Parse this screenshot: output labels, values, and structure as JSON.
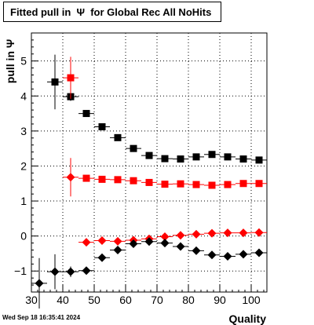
{
  "title": "Fitted pull in  Ψ  for Global Rec All NoHits",
  "footer": "Wed Sep 18 16:35:41 2024",
  "chart_data": {
    "type": "scatter",
    "title": "Fitted pull in  Ψ  for Global Rec All NoHits",
    "xlabel": "Quality",
    "ylabel": "pull in  Ψ",
    "xlim": [
      30,
      105
    ],
    "ylim": [
      -1.6,
      5.8
    ],
    "xticks": [
      30,
      40,
      50,
      60,
      70,
      80,
      90,
      100
    ],
    "yticks": [
      -1,
      0,
      1,
      2,
      3,
      4,
      5
    ],
    "grid": true,
    "series": [
      {
        "marker": "square",
        "color": "#000000",
        "points": [
          {
            "x": 37.5,
            "y": 4.4,
            "yerr": 0.78
          },
          {
            "x": 42.5,
            "y": 3.98,
            "yerr": 0.12
          },
          {
            "x": 47.5,
            "y": 3.5,
            "yerr": 0.04
          },
          {
            "x": 52.5,
            "y": 3.12,
            "yerr": 0.04
          },
          {
            "x": 57.5,
            "y": 2.81,
            "yerr": 0.04
          },
          {
            "x": 62.5,
            "y": 2.5,
            "yerr": 0.04
          },
          {
            "x": 67.5,
            "y": 2.3,
            "yerr": 0.04
          },
          {
            "x": 72.5,
            "y": 2.21,
            "yerr": 0.04
          },
          {
            "x": 77.5,
            "y": 2.2,
            "yerr": 0.04
          },
          {
            "x": 82.5,
            "y": 2.26,
            "yerr": 0.04
          },
          {
            "x": 87.5,
            "y": 2.33,
            "yerr": 0.04
          },
          {
            "x": 92.5,
            "y": 2.26,
            "yerr": 0.04
          },
          {
            "x": 97.5,
            "y": 2.2,
            "yerr": 0.04
          },
          {
            "x": 102.5,
            "y": 2.17,
            "yerr": 0.04
          }
        ]
      },
      {
        "marker": "square",
        "color": "#ff0000",
        "points": [
          {
            "x": 42.5,
            "y": 4.52,
            "yerr": 0.6
          }
        ]
      },
      {
        "marker": "diamond",
        "color": "#ff0000",
        "points": [
          {
            "x": 42.5,
            "y": 1.68,
            "yerr": 0.55
          }
        ]
      },
      {
        "marker": "square",
        "color": "#ff0000",
        "points": [
          {
            "x": 47.5,
            "y": 1.65,
            "yerr": 0.04
          },
          {
            "x": 52.5,
            "y": 1.62,
            "yerr": 0.04
          },
          {
            "x": 57.5,
            "y": 1.61,
            "yerr": 0.04
          },
          {
            "x": 62.5,
            "y": 1.58,
            "yerr": 0.04
          },
          {
            "x": 67.5,
            "y": 1.53,
            "yerr": 0.04
          },
          {
            "x": 72.5,
            "y": 1.48,
            "yerr": 0.04
          },
          {
            "x": 77.5,
            "y": 1.49,
            "yerr": 0.04
          },
          {
            "x": 82.5,
            "y": 1.47,
            "yerr": 0.04
          },
          {
            "x": 87.5,
            "y": 1.45,
            "yerr": 0.04
          },
          {
            "x": 92.5,
            "y": 1.47,
            "yerr": 0.04
          },
          {
            "x": 97.5,
            "y": 1.5,
            "yerr": 0.04
          },
          {
            "x": 102.5,
            "y": 1.5,
            "yerr": 0.04
          }
        ]
      },
      {
        "marker": "diamond",
        "color": "#ff0000",
        "points": [
          {
            "x": 47.5,
            "y": -0.18,
            "yerr": 0.03
          },
          {
            "x": 52.5,
            "y": -0.13,
            "yerr": 0.03
          },
          {
            "x": 57.5,
            "y": -0.15,
            "yerr": 0.03
          },
          {
            "x": 62.5,
            "y": -0.12,
            "yerr": 0.03
          },
          {
            "x": 67.5,
            "y": -0.08,
            "yerr": 0.03
          },
          {
            "x": 72.5,
            "y": -0.02,
            "yerr": 0.03
          },
          {
            "x": 77.5,
            "y": 0.02,
            "yerr": 0.03
          },
          {
            "x": 82.5,
            "y": 0.05,
            "yerr": 0.03
          },
          {
            "x": 87.5,
            "y": 0.08,
            "yerr": 0.03
          },
          {
            "x": 92.5,
            "y": 0.09,
            "yerr": 0.03
          },
          {
            "x": 97.5,
            "y": 0.09,
            "yerr": 0.03
          },
          {
            "x": 102.5,
            "y": 0.1,
            "yerr": 0.03
          }
        ]
      },
      {
        "marker": "diamond",
        "color": "#000000",
        "points": [
          {
            "x": 32.5,
            "y": -1.35,
            "yerr": 0.72
          },
          {
            "x": 37.5,
            "y": -1.02,
            "yerr": 0.5
          },
          {
            "x": 42.5,
            "y": -1.02,
            "yerr": 0.15
          },
          {
            "x": 47.5,
            "y": -0.99,
            "yerr": 0.06
          },
          {
            "x": 52.5,
            "y": -0.62,
            "yerr": 0.04
          },
          {
            "x": 57.5,
            "y": -0.4,
            "yerr": 0.04
          },
          {
            "x": 62.5,
            "y": -0.22,
            "yerr": 0.04
          },
          {
            "x": 67.5,
            "y": -0.16,
            "yerr": 0.04
          },
          {
            "x": 72.5,
            "y": -0.2,
            "yerr": 0.04
          },
          {
            "x": 77.5,
            "y": -0.3,
            "yerr": 0.04
          },
          {
            "x": 82.5,
            "y": -0.42,
            "yerr": 0.04
          },
          {
            "x": 87.5,
            "y": -0.54,
            "yerr": 0.04
          },
          {
            "x": 92.5,
            "y": -0.58,
            "yerr": 0.04
          },
          {
            "x": 97.5,
            "y": -0.52,
            "yerr": 0.04
          },
          {
            "x": 102.5,
            "y": -0.48,
            "yerr": 0.04
          }
        ]
      }
    ]
  }
}
